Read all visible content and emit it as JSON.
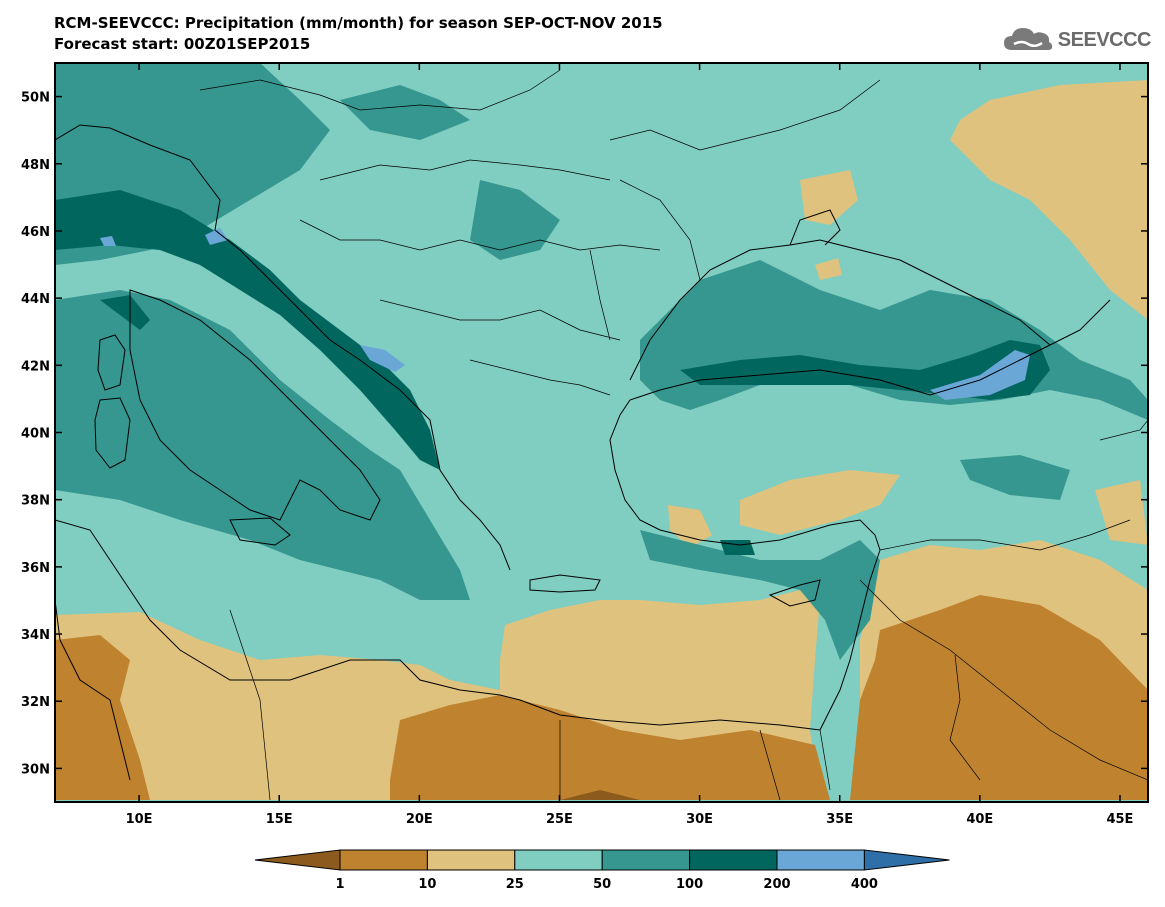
{
  "header": {
    "title_line1": "RCM-SEEVCCC: Precipitation (mm/month) for season SEP-OCT-NOV 2015",
    "title_line2": "Forecast start: 00Z01SEP2015"
  },
  "logo": {
    "text": "SEEVCCC",
    "icon": "cloud-icon"
  },
  "map": {
    "lon_range": [
      7,
      46
    ],
    "lat_range": [
      29,
      51
    ],
    "lat_ticks": [
      {
        "value": 30,
        "label": "30N"
      },
      {
        "value": 32,
        "label": "32N"
      },
      {
        "value": 34,
        "label": "34N"
      },
      {
        "value": 36,
        "label": "36N"
      },
      {
        "value": 38,
        "label": "38N"
      },
      {
        "value": 40,
        "label": "40N"
      },
      {
        "value": 42,
        "label": "42N"
      },
      {
        "value": 44,
        "label": "44N"
      },
      {
        "value": 46,
        "label": "46N"
      },
      {
        "value": 48,
        "label": "48N"
      },
      {
        "value": 50,
        "label": "50N"
      }
    ],
    "lon_ticks": [
      {
        "value": 10,
        "label": "10E"
      },
      {
        "value": 15,
        "label": "15E"
      },
      {
        "value": 20,
        "label": "20E"
      },
      {
        "value": 25,
        "label": "25E"
      },
      {
        "value": 30,
        "label": "30E"
      },
      {
        "value": 35,
        "label": "35E"
      },
      {
        "value": 40,
        "label": "40E"
      },
      {
        "value": 45,
        "label": "45E"
      }
    ]
  },
  "colorbar": {
    "labels": [
      "1",
      "10",
      "25",
      "50",
      "100",
      "200",
      "400"
    ],
    "colors": [
      "#8c5a1c",
      "#bf8330",
      "#dfc27d",
      "#80cdc1",
      "#35978f",
      "#01665e",
      "#6ba7d6",
      "#2e6fa8"
    ]
  }
}
